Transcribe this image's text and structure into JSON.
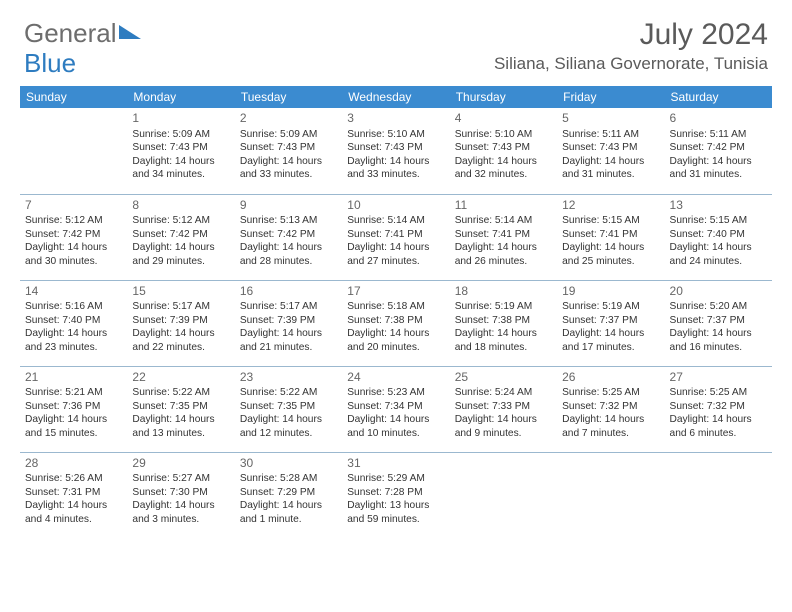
{
  "brand": {
    "part1": "General",
    "part2": "Blue"
  },
  "title": "July 2024",
  "location": "Siliana, Siliana Governorate, Tunisia",
  "colors": {
    "header_bg": "#3b8bd0",
    "brand_gray": "#6d6d6d",
    "brand_blue": "#2e7cc0",
    "text": "#333333",
    "rule": "#9bb8cf"
  },
  "days_of_week": [
    "Sunday",
    "Monday",
    "Tuesday",
    "Wednesday",
    "Thursday",
    "Friday",
    "Saturday"
  ],
  "weeks": [
    [
      null,
      {
        "n": "1",
        "sr": "5:09 AM",
        "ss": "7:43 PM",
        "dl": "14 hours and 34 minutes."
      },
      {
        "n": "2",
        "sr": "5:09 AM",
        "ss": "7:43 PM",
        "dl": "14 hours and 33 minutes."
      },
      {
        "n": "3",
        "sr": "5:10 AM",
        "ss": "7:43 PM",
        "dl": "14 hours and 33 minutes."
      },
      {
        "n": "4",
        "sr": "5:10 AM",
        "ss": "7:43 PM",
        "dl": "14 hours and 32 minutes."
      },
      {
        "n": "5",
        "sr": "5:11 AM",
        "ss": "7:43 PM",
        "dl": "14 hours and 31 minutes."
      },
      {
        "n": "6",
        "sr": "5:11 AM",
        "ss": "7:42 PM",
        "dl": "14 hours and 31 minutes."
      }
    ],
    [
      {
        "n": "7",
        "sr": "5:12 AM",
        "ss": "7:42 PM",
        "dl": "14 hours and 30 minutes."
      },
      {
        "n": "8",
        "sr": "5:12 AM",
        "ss": "7:42 PM",
        "dl": "14 hours and 29 minutes."
      },
      {
        "n": "9",
        "sr": "5:13 AM",
        "ss": "7:42 PM",
        "dl": "14 hours and 28 minutes."
      },
      {
        "n": "10",
        "sr": "5:14 AM",
        "ss": "7:41 PM",
        "dl": "14 hours and 27 minutes."
      },
      {
        "n": "11",
        "sr": "5:14 AM",
        "ss": "7:41 PM",
        "dl": "14 hours and 26 minutes."
      },
      {
        "n": "12",
        "sr": "5:15 AM",
        "ss": "7:41 PM",
        "dl": "14 hours and 25 minutes."
      },
      {
        "n": "13",
        "sr": "5:15 AM",
        "ss": "7:40 PM",
        "dl": "14 hours and 24 minutes."
      }
    ],
    [
      {
        "n": "14",
        "sr": "5:16 AM",
        "ss": "7:40 PM",
        "dl": "14 hours and 23 minutes."
      },
      {
        "n": "15",
        "sr": "5:17 AM",
        "ss": "7:39 PM",
        "dl": "14 hours and 22 minutes."
      },
      {
        "n": "16",
        "sr": "5:17 AM",
        "ss": "7:39 PM",
        "dl": "14 hours and 21 minutes."
      },
      {
        "n": "17",
        "sr": "5:18 AM",
        "ss": "7:38 PM",
        "dl": "14 hours and 20 minutes."
      },
      {
        "n": "18",
        "sr": "5:19 AM",
        "ss": "7:38 PM",
        "dl": "14 hours and 18 minutes."
      },
      {
        "n": "19",
        "sr": "5:19 AM",
        "ss": "7:37 PM",
        "dl": "14 hours and 17 minutes."
      },
      {
        "n": "20",
        "sr": "5:20 AM",
        "ss": "7:37 PM",
        "dl": "14 hours and 16 minutes."
      }
    ],
    [
      {
        "n": "21",
        "sr": "5:21 AM",
        "ss": "7:36 PM",
        "dl": "14 hours and 15 minutes."
      },
      {
        "n": "22",
        "sr": "5:22 AM",
        "ss": "7:35 PM",
        "dl": "14 hours and 13 minutes."
      },
      {
        "n": "23",
        "sr": "5:22 AM",
        "ss": "7:35 PM",
        "dl": "14 hours and 12 minutes."
      },
      {
        "n": "24",
        "sr": "5:23 AM",
        "ss": "7:34 PM",
        "dl": "14 hours and 10 minutes."
      },
      {
        "n": "25",
        "sr": "5:24 AM",
        "ss": "7:33 PM",
        "dl": "14 hours and 9 minutes."
      },
      {
        "n": "26",
        "sr": "5:25 AM",
        "ss": "7:32 PM",
        "dl": "14 hours and 7 minutes."
      },
      {
        "n": "27",
        "sr": "5:25 AM",
        "ss": "7:32 PM",
        "dl": "14 hours and 6 minutes."
      }
    ],
    [
      {
        "n": "28",
        "sr": "5:26 AM",
        "ss": "7:31 PM",
        "dl": "14 hours and 4 minutes."
      },
      {
        "n": "29",
        "sr": "5:27 AM",
        "ss": "7:30 PM",
        "dl": "14 hours and 3 minutes."
      },
      {
        "n": "30",
        "sr": "5:28 AM",
        "ss": "7:29 PM",
        "dl": "14 hours and 1 minute."
      },
      {
        "n": "31",
        "sr": "5:29 AM",
        "ss": "7:28 PM",
        "dl": "13 hours and 59 minutes."
      },
      null,
      null,
      null
    ]
  ],
  "labels": {
    "sunrise": "Sunrise: ",
    "sunset": "Sunset: ",
    "daylight": "Daylight: "
  }
}
